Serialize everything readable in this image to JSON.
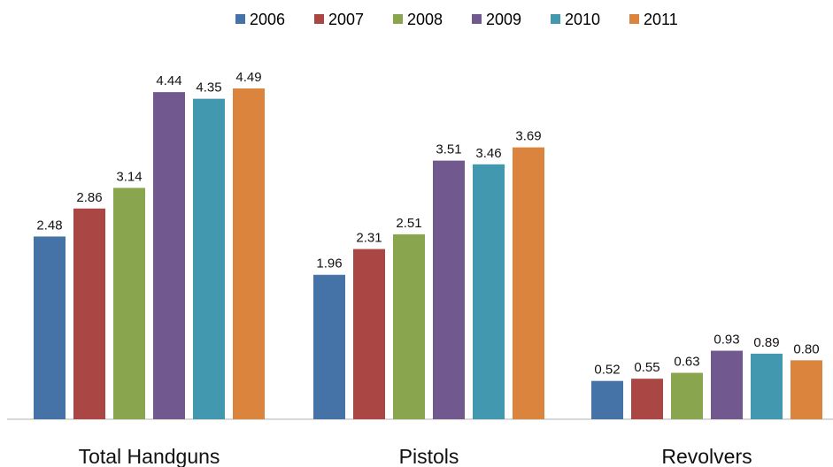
{
  "chart_data": {
    "type": "bar",
    "categories": [
      "Total Handguns",
      "Pistols",
      "Revolvers"
    ],
    "series": [
      {
        "name": "2006",
        "color": "#4572a7",
        "values": [
          2.48,
          1.96,
          0.52
        ]
      },
      {
        "name": "2007",
        "color": "#aa4643",
        "values": [
          2.86,
          2.31,
          0.55
        ]
      },
      {
        "name": "2008",
        "color": "#89a54e",
        "values": [
          3.14,
          2.51,
          0.63
        ]
      },
      {
        "name": "2009",
        "color": "#71588f",
        "values": [
          4.44,
          3.51,
          0.93
        ]
      },
      {
        "name": "2010",
        "color": "#4198af",
        "values": [
          4.35,
          3.46,
          0.89
        ]
      },
      {
        "name": "2011",
        "color": "#db843d",
        "values": [
          4.49,
          3.69,
          0.8
        ]
      }
    ],
    "value_labels": [
      [
        "2.48",
        "1.96",
        "0.52"
      ],
      [
        "2.86",
        "2.31",
        "0.55"
      ],
      [
        "3.14",
        "2.51",
        "0.63"
      ],
      [
        "4.44",
        "3.51",
        "0.93"
      ],
      [
        "4.35",
        "3.46",
        "0.89"
      ],
      [
        "4.49",
        "3.69",
        "0.80"
      ]
    ],
    "ylim": [
      0,
      5.1
    ],
    "legend": "top",
    "grid": false
  }
}
